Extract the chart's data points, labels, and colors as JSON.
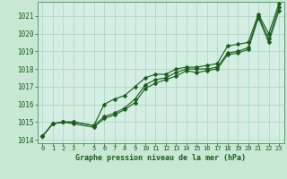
{
  "xlabel": "Graphe pression niveau de la mer (hPa)",
  "background_color": "#c8e8d4",
  "plot_bg_color": "#d4eee4",
  "grid_color": "#a8d4be",
  "line_color": "#1a5c1a",
  "border_color": "#5a9a6a",
  "x": [
    0,
    1,
    2,
    3,
    5,
    6,
    7,
    8,
    9,
    10,
    11,
    12,
    13,
    14,
    15,
    16,
    17,
    18,
    19,
    20,
    21,
    22,
    23
  ],
  "x_all": [
    0,
    1,
    2,
    3,
    4,
    5,
    6,
    7,
    8,
    9,
    10,
    11,
    12,
    13,
    14,
    15,
    16,
    17,
    18,
    19,
    20,
    21,
    22,
    23
  ],
  "series1": [
    1014.2,
    1014.9,
    1015.0,
    1015.0,
    1014.8,
    1015.3,
    1015.5,
    1015.8,
    1016.3,
    1017.1,
    1017.4,
    1017.5,
    1017.8,
    1018.0,
    1018.0,
    1018.0,
    1018.1,
    1018.9,
    1019.0,
    1019.2,
    1021.0,
    1019.7,
    1021.5
  ],
  "series2": [
    1014.2,
    1014.9,
    1015.0,
    1014.9,
    1014.7,
    1015.2,
    1015.4,
    1015.7,
    1016.1,
    1016.9,
    1017.2,
    1017.4,
    1017.6,
    1017.9,
    1017.8,
    1017.9,
    1018.0,
    1018.8,
    1018.9,
    1019.1,
    1020.9,
    1019.5,
    1021.3
  ],
  "series3": [
    1014.2,
    1014.9,
    1015.0,
    1015.0,
    1014.8,
    1016.0,
    1016.3,
    1016.5,
    1017.0,
    1017.5,
    1017.7,
    1017.7,
    1018.0,
    1018.1,
    1018.1,
    1018.2,
    1018.3,
    1019.3,
    1019.4,
    1019.5,
    1021.1,
    1020.0,
    1021.7
  ],
  "ylim": [
    1013.8,
    1021.8
  ],
  "yticks": [
    1014,
    1015,
    1016,
    1017,
    1018,
    1019,
    1020,
    1021
  ],
  "xtick_labels": [
    "0",
    "1",
    "2",
    "3",
    "",
    "5",
    "6",
    "7",
    "8",
    "9",
    "10",
    "11",
    "12",
    "13",
    "14",
    "15",
    "16",
    "17",
    "18",
    "19",
    "20",
    "21",
    "22",
    "23"
  ],
  "markersize": 2.5,
  "linewidth": 0.8
}
